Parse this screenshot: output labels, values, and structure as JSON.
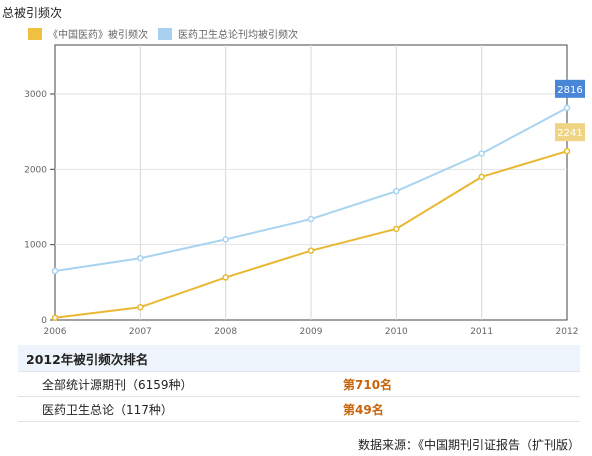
{
  "section_title": "总被引频次",
  "legend": [
    {
      "label": "《中国医药》被引频次",
      "color": "#f0c040"
    },
    {
      "label": "医药卫生总论刊均被引频次",
      "color": "#a8d0f0"
    }
  ],
  "chart_data": {
    "type": "line",
    "x": [
      "2006",
      "2007",
      "2008",
      "2009",
      "2010",
      "2011",
      "2012"
    ],
    "series": [
      {
        "name": "《中国医药》被引频次",
        "color": "#e8b830",
        "values": [
          30,
          170,
          565,
          920,
          1210,
          1900,
          2241
        ]
      },
      {
        "name": "医药卫生总论刊均被引频次",
        "color": "#a8d4f0",
        "values": [
          650,
          820,
          1070,
          1340,
          1710,
          2210,
          2816
        ]
      }
    ],
    "yticks": [
      0,
      1000,
      2000,
      3000
    ],
    "ylim": [
      0,
      3650
    ],
    "end_labels": [
      {
        "text": "2816",
        "color": "#4a86d8"
      },
      {
        "text": "2241",
        "color": "#efd483"
      }
    ],
    "grid": true
  },
  "ranking": {
    "title": "2012年被引频次排名",
    "rows": [
      {
        "name": "全部统计源期刊（6159种）",
        "rank": "第710名"
      },
      {
        "name": "医药卫生总论（117种）",
        "rank": "第49名"
      }
    ]
  },
  "source_note": "数据来源：《中国期刊引证报告（扩刊版）"
}
